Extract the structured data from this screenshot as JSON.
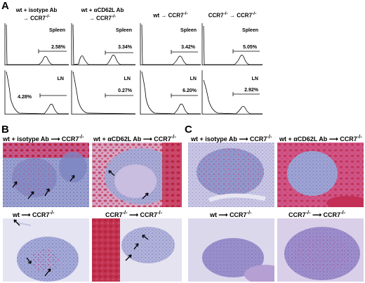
{
  "panels": {
    "A": {
      "letter": "A",
      "columns": [
        {
          "line1": "wt + isotype Ab",
          "arrow": "→",
          "target": "CCR7",
          "sup": "-/-"
        },
        {
          "line1": "wt + αCD62L Ab",
          "arrow": "→",
          "target": "CCR7",
          "sup": "-/-"
        },
        {
          "line1": "wt",
          "arrow": "→",
          "target": "CCR7",
          "sup": "-/-"
        },
        {
          "line1": "CCR7",
          "line1sup": "-/-",
          "arrow": "→",
          "target": "CCR7",
          "sup": "-/-"
        }
      ],
      "rows": [
        {
          "tissue": "Spleen",
          "percents": [
            "2.58%",
            "3.34%",
            "3.42%",
            "5.05%"
          ]
        },
        {
          "tissue": "LN",
          "percents": [
            "4.28%",
            "0.27%",
            "6.20%",
            "2.92%"
          ]
        }
      ]
    },
    "B": {
      "letter": "B",
      "captions": [
        {
          "left": "wt + isotype Ab",
          "right": "CCR7",
          "sup": "-/-"
        },
        {
          "left": "wt + αCD62L Ab",
          "right": "CCR7",
          "sup": "-/-"
        },
        {
          "left": "wt",
          "right": "CCR7",
          "sup": "-/-"
        },
        {
          "left": "CCR7",
          "leftsup": "-/-",
          "right": "CCR7",
          "sup": "-/-"
        }
      ]
    },
    "C": {
      "letter": "C",
      "captions": [
        {
          "left": "wt + isotype Ab",
          "right": "CCR7",
          "sup": "-/-"
        },
        {
          "left": "wt + αCD62L Ab",
          "right": "CCR7",
          "sup": "-/-"
        },
        {
          "left": "wt",
          "right": "CCR7",
          "sup": "-/-"
        },
        {
          "left": "CCR7",
          "leftsup": "-/-",
          "right": "CCR7",
          "sup": "-/-"
        }
      ]
    }
  },
  "colors": {
    "stain_blue": "#8e95c8",
    "stain_pink": "#d0558c",
    "stain_red": "#c22a46",
    "tissue_white": "#eef0f7"
  }
}
